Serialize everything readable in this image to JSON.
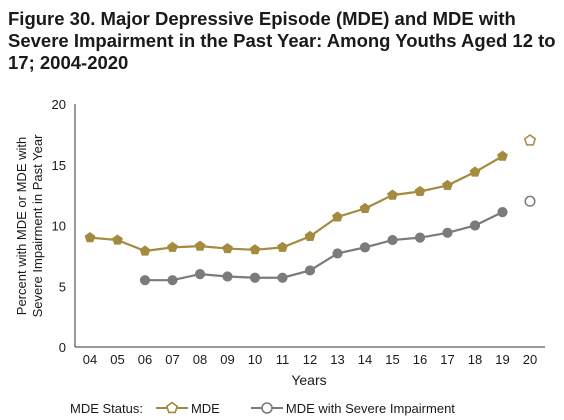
{
  "title": "Figure 30. Major Depressive Episode (MDE) and MDE with Severe Impairment in the Past Year: Among Youths Aged 12 to 17; 2004-2020",
  "legend": {
    "label": "MDE Status:",
    "items": [
      {
        "name": "MDE",
        "color": "#a48b3f"
      },
      {
        "name": "MDE with Severe Impairment",
        "color": "#7b7b7b"
      }
    ]
  },
  "chart_data": {
    "type": "line",
    "xlabel": "Years",
    "ylabel_line1": "Percent with MDE or MDE with",
    "ylabel_line2": "Severe Impairment in Past Year",
    "ylim": [
      0,
      20
    ],
    "yticks": [
      0,
      5,
      10,
      15,
      20
    ],
    "x": [
      "04",
      "05",
      "06",
      "07",
      "08",
      "09",
      "10",
      "11",
      "12",
      "13",
      "14",
      "15",
      "16",
      "17",
      "18",
      "19",
      "20"
    ],
    "grid": false,
    "legend_position": "bottom",
    "series": [
      {
        "name": "MDE",
        "color": "#a48b3f",
        "values": [
          9.0,
          8.8,
          7.9,
          8.2,
          8.3,
          8.1,
          8.0,
          8.2,
          9.1,
          10.7,
          11.4,
          12.5,
          12.8,
          13.3,
          14.4,
          15.7,
          17.0
        ],
        "separate_last": true
      },
      {
        "name": "MDE with Severe Impairment",
        "color": "#7b7b7b",
        "values": [
          null,
          null,
          5.5,
          5.5,
          6.0,
          5.8,
          5.7,
          5.7,
          6.3,
          7.7,
          8.2,
          8.8,
          9.0,
          9.4,
          10.0,
          11.1,
          12.0
        ],
        "separate_last": true
      }
    ]
  }
}
